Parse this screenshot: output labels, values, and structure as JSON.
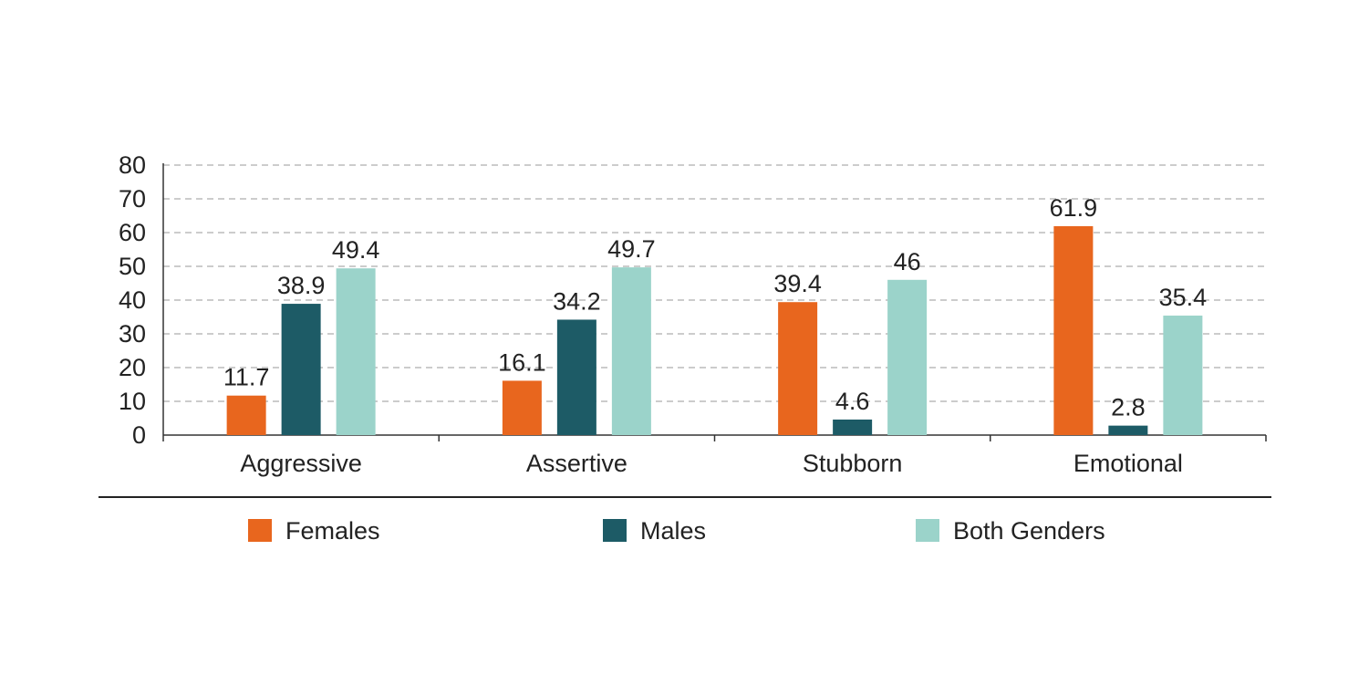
{
  "chart_data": {
    "type": "bar",
    "title": "",
    "xlabel": "",
    "ylabel": "",
    "ylim": [
      0,
      80
    ],
    "yticks": [
      0,
      10,
      20,
      30,
      40,
      50,
      60,
      70,
      80
    ],
    "grid": true,
    "legend_position": "bottom",
    "categories": [
      "Aggressive",
      "Assertive",
      "Stubborn",
      "Emotional"
    ],
    "series": [
      {
        "name": "Females",
        "color": "#E8661E",
        "values": [
          11.7,
          16.1,
          39.4,
          61.9
        ],
        "labels": [
          "11.7",
          "16.1",
          "39.4",
          "61.9"
        ]
      },
      {
        "name": "Males",
        "color": "#1D5B66",
        "values": [
          38.9,
          34.2,
          4.6,
          2.8
        ],
        "labels": [
          "38.9",
          "34.2",
          "4.6",
          "2.8"
        ]
      },
      {
        "name": "Both Genders",
        "color": "#9BD3CA",
        "values": [
          49.4,
          49.7,
          46,
          35.4
        ],
        "labels": [
          "49.4",
          "49.7",
          "46",
          "35.4"
        ]
      }
    ]
  }
}
